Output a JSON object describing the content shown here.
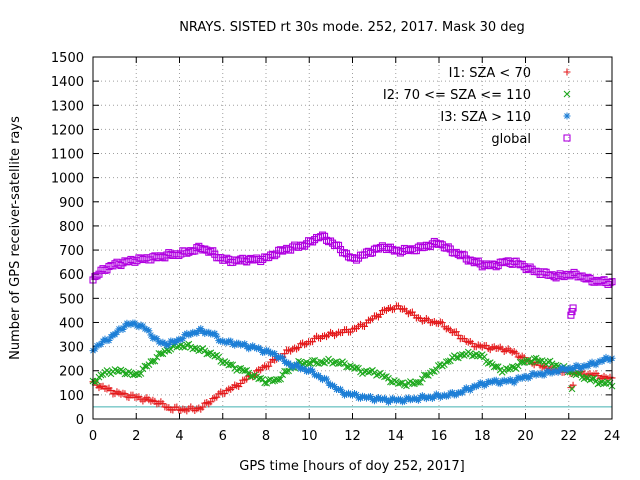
{
  "chart_data": {
    "type": "scatter",
    "title": "NRAYS. SISTED rt 30s mode. 252, 2017. Mask 30 deg",
    "xlabel": "GPS time [hours of doy 252, 2017]",
    "ylabel": "Number of GPS receiver-satellite rays",
    "xlim": [
      0,
      24
    ],
    "ylim": [
      0,
      1500
    ],
    "xticks": [
      "0",
      "2",
      "4",
      "6",
      "8",
      "10",
      "12",
      "14",
      "16",
      "18",
      "20",
      "22",
      "24"
    ],
    "yticks": [
      "0",
      "100",
      "200",
      "300",
      "400",
      "500",
      "600",
      "700",
      "800",
      "900",
      "1000",
      "1100",
      "1200",
      "1300",
      "1400",
      "1500"
    ],
    "grid": true,
    "legend_position": "top-right",
    "reference_line": {
      "y": 50,
      "color": "#40b0b0"
    },
    "series": [
      {
        "name": "I1: SZA < 70",
        "marker": "+",
        "color": "#e41a1c",
        "x": [
          0,
          0.5,
          1,
          1.5,
          2,
          2.5,
          3,
          3.5,
          4,
          4.5,
          5,
          5.5,
          6,
          6.5,
          7,
          7.5,
          8,
          8.5,
          9,
          9.5,
          10,
          10.5,
          11,
          11.5,
          12,
          12.5,
          13,
          13.5,
          14,
          14.5,
          15,
          15.5,
          16,
          16.5,
          17,
          17.5,
          18,
          18.5,
          19,
          19.5,
          20,
          20.5,
          21,
          21.5,
          22,
          22.5,
          23,
          23.5,
          24
        ],
        "values": [
          150,
          130,
          110,
          100,
          90,
          80,
          70,
          45,
          40,
          40,
          45,
          80,
          110,
          130,
          160,
          190,
          220,
          250,
          280,
          300,
          320,
          340,
          350,
          360,
          370,
          390,
          420,
          450,
          465,
          450,
          420,
          405,
          400,
          370,
          340,
          310,
          300,
          295,
          290,
          275,
          245,
          230,
          210,
          200,
          195,
          190,
          185,
          175,
          165
        ]
      },
      {
        "name": "I2: 70 <= SZA <= 110",
        "marker": "x",
        "color": "#1ca81c",
        "x": [
          0,
          0.5,
          1,
          1.5,
          2,
          2.5,
          3,
          3.5,
          4,
          4.5,
          5,
          5.5,
          6,
          6.5,
          7,
          7.5,
          8,
          8.5,
          9,
          9.5,
          10,
          10.5,
          11,
          11.5,
          12,
          12.5,
          13,
          13.5,
          14,
          14.5,
          15,
          15.5,
          16,
          16.5,
          17,
          17.5,
          18,
          18.5,
          19,
          19.5,
          20,
          20.5,
          21,
          21.5,
          22,
          22.5,
          23,
          23.5,
          24
        ],
        "values": [
          150,
          190,
          200,
          195,
          180,
          220,
          260,
          290,
          305,
          300,
          285,
          270,
          240,
          215,
          200,
          175,
          155,
          160,
          200,
          230,
          235,
          235,
          240,
          230,
          215,
          195,
          195,
          175,
          150,
          145,
          150,
          185,
          215,
          245,
          265,
          270,
          260,
          220,
          200,
          215,
          240,
          245,
          235,
          220,
          200,
          180,
          165,
          150,
          145
        ]
      },
      {
        "name": "I3: SZA > 110",
        "marker": "*",
        "color": "#1c7ed6",
        "x": [
          0,
          0.5,
          1,
          1.5,
          2,
          2.5,
          3,
          3.5,
          4,
          4.5,
          5,
          5.5,
          6,
          6.5,
          7,
          7.5,
          8,
          8.5,
          9,
          9.5,
          10,
          10.5,
          11,
          11.5,
          12,
          12.5,
          13,
          13.5,
          14,
          14.5,
          15,
          15.5,
          16,
          16.5,
          17,
          17.5,
          18,
          18.5,
          19,
          19.5,
          20,
          20.5,
          21,
          21.5,
          22,
          22.5,
          23,
          23.5,
          24
        ],
        "values": [
          290,
          320,
          350,
          390,
          395,
          370,
          320,
          310,
          330,
          355,
          365,
          355,
          320,
          315,
          305,
          295,
          280,
          265,
          230,
          215,
          200,
          175,
          145,
          110,
          100,
          90,
          85,
          80,
          78,
          80,
          85,
          90,
          95,
          100,
          110,
          130,
          145,
          155,
          155,
          160,
          175,
          185,
          190,
          200,
          210,
          215,
          225,
          240,
          255
        ]
      },
      {
        "name": "global",
        "marker": "square",
        "color": "#b000e0",
        "x": [
          0,
          0.5,
          1,
          1.5,
          2,
          2.5,
          3,
          3.5,
          4,
          4.5,
          5,
          5.5,
          6,
          6.5,
          7,
          7.5,
          8,
          8.5,
          9,
          9.5,
          10,
          10.5,
          11,
          11.5,
          12,
          12.5,
          13,
          13.5,
          14,
          14.5,
          15,
          15.5,
          16,
          16.5,
          17,
          17.5,
          18,
          18.5,
          19,
          19.5,
          20,
          20.5,
          21,
          21.5,
          22,
          22.5,
          23,
          23.5,
          24
        ],
        "values": [
          580,
          620,
          640,
          650,
          660,
          665,
          670,
          680,
          685,
          695,
          710,
          690,
          660,
          655,
          660,
          660,
          665,
          690,
          705,
          715,
          730,
          760,
          735,
          700,
          660,
          680,
          700,
          715,
          695,
          700,
          705,
          720,
          730,
          700,
          680,
          655,
          640,
          635,
          650,
          650,
          630,
          610,
          600,
          590,
          600,
          595,
          575,
          570,
          565
        ]
      }
    ],
    "outliers": [
      {
        "series": "global",
        "x": [
          22.1,
          22.15,
          22.2
        ],
        "values": [
          430,
          445,
          460
        ]
      },
      {
        "series": "I1: SZA < 70",
        "x": [
          22.1,
          22.2
        ],
        "values": [
          130,
          140
        ]
      },
      {
        "series": "I2: 70 <= SZA <= 110",
        "x": [
          22.15
        ],
        "values": [
          125
        ]
      }
    ]
  }
}
